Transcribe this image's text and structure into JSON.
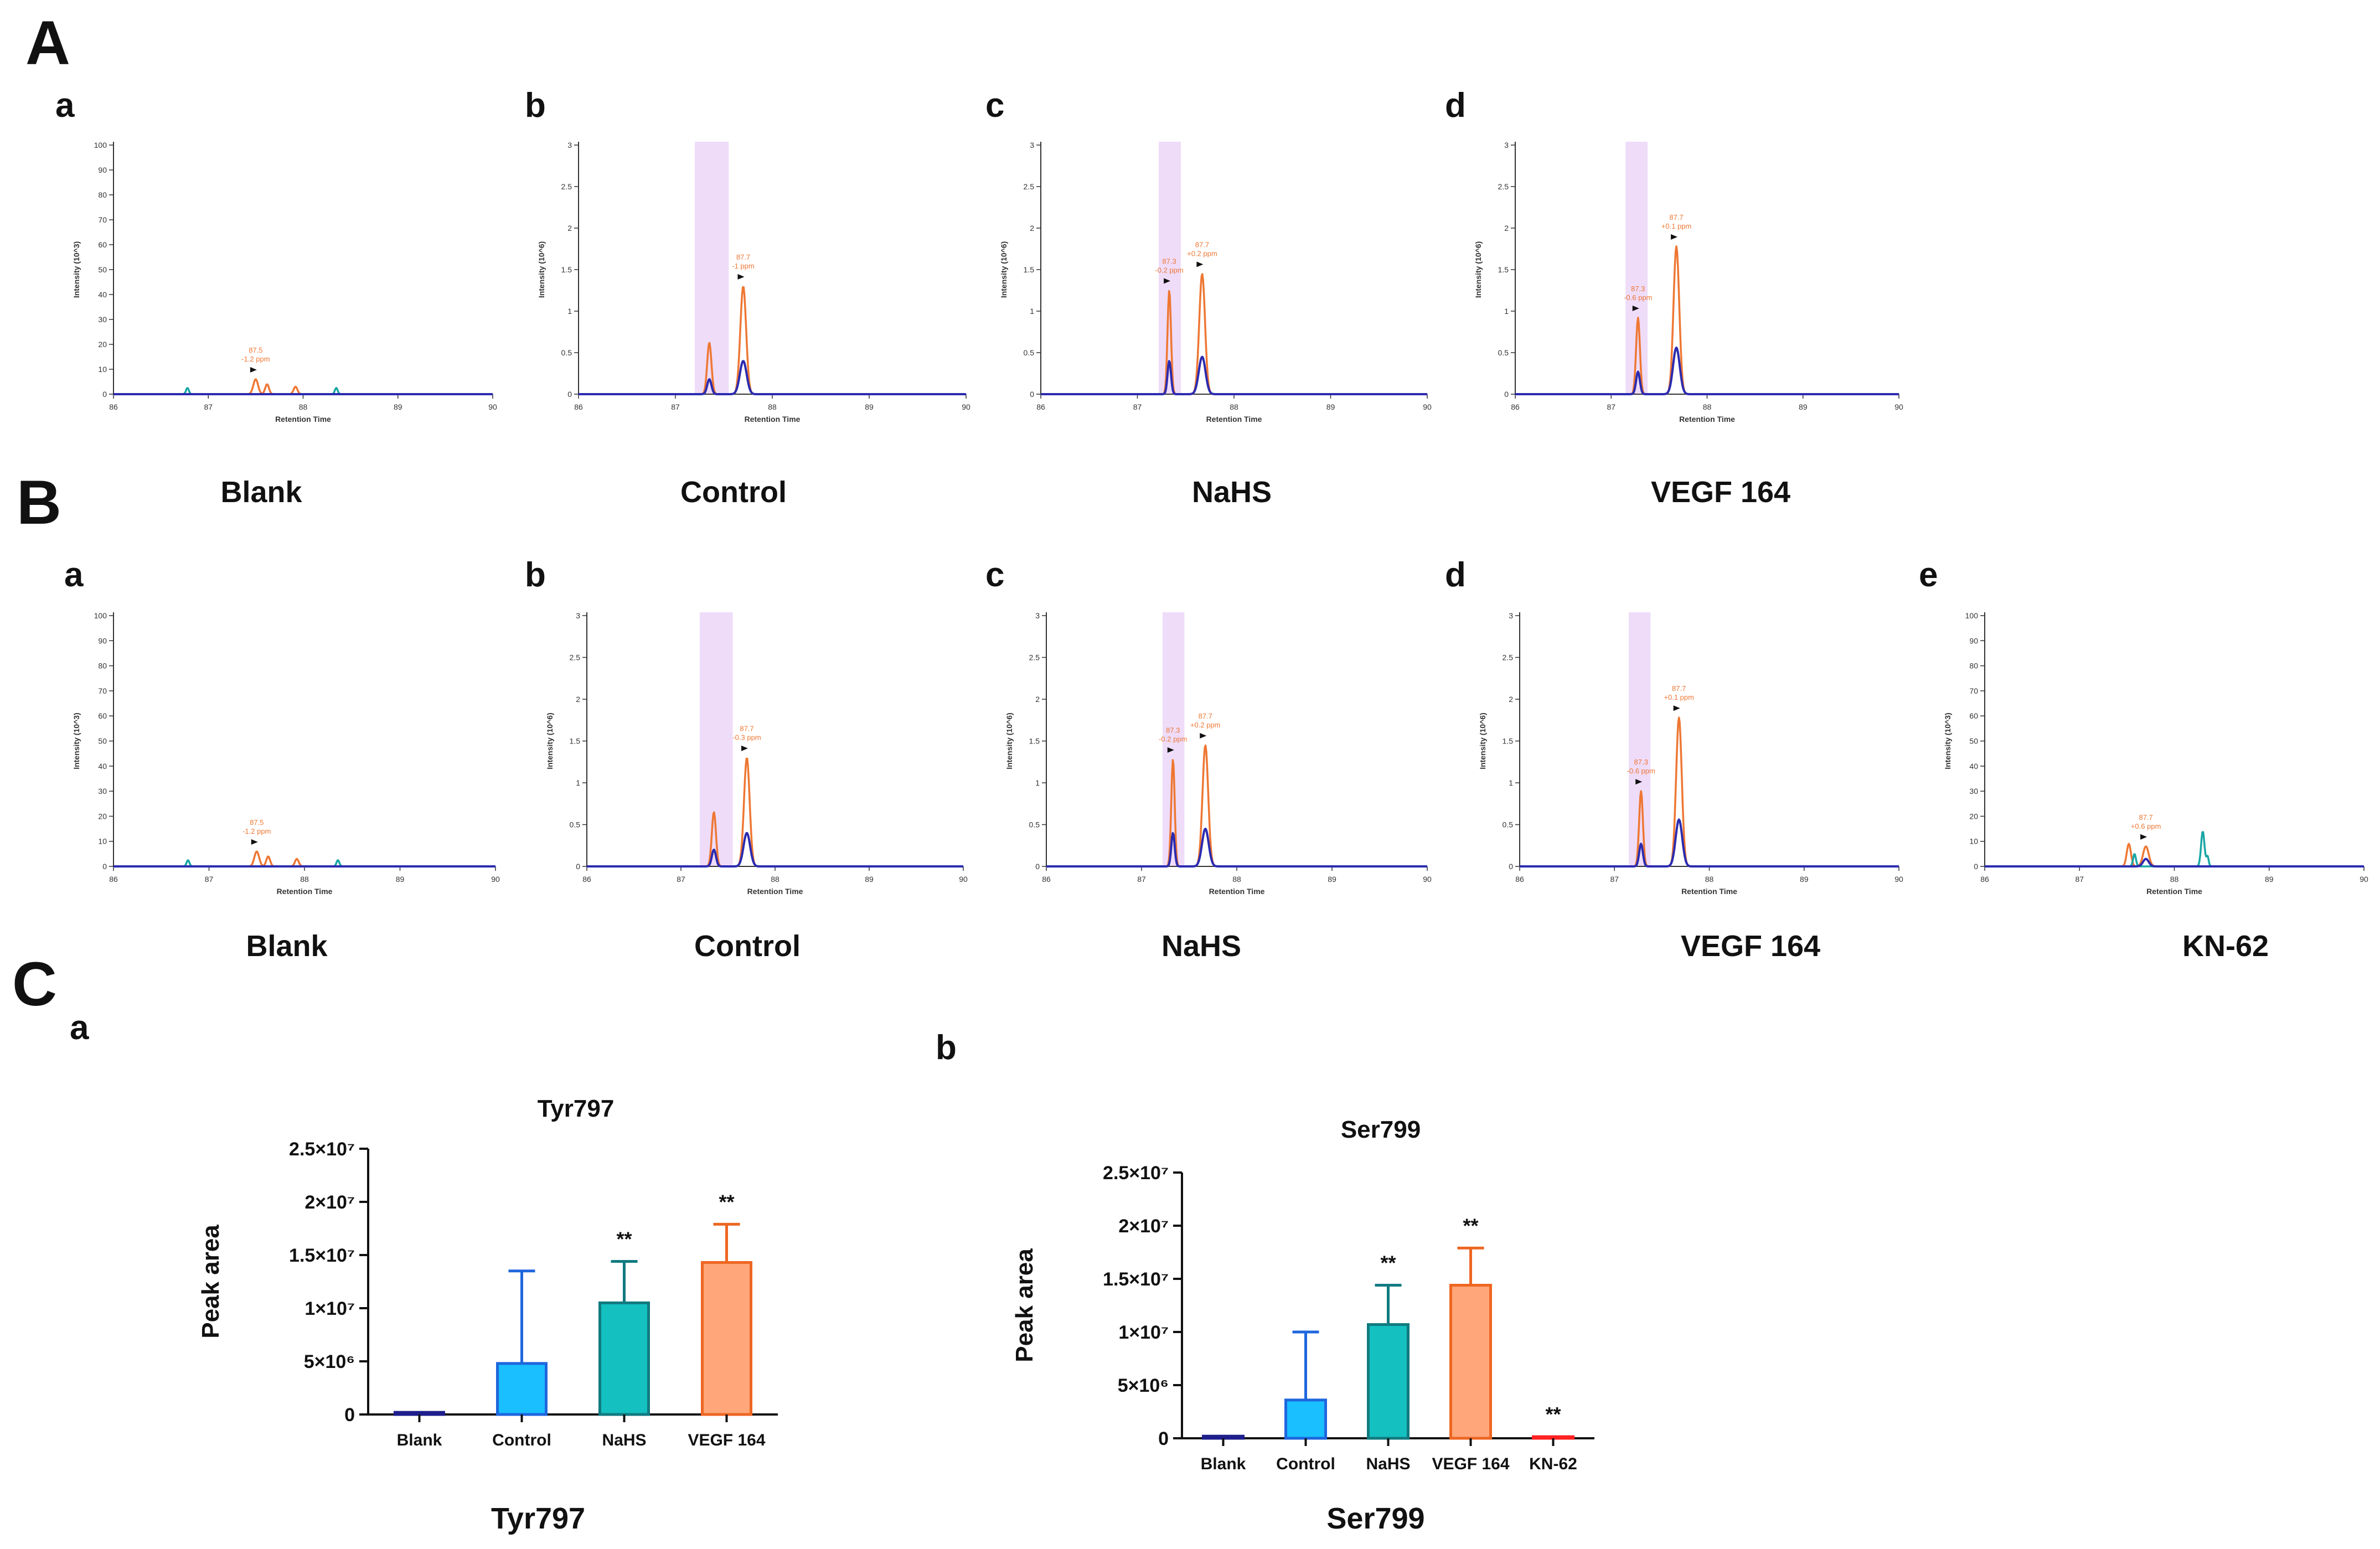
{
  "labels": {
    "A": "A",
    "B": "B",
    "C": "C",
    "A_sub": [
      "a",
      "b",
      "c",
      "d"
    ],
    "B_sub": [
      "a",
      "b",
      "c",
      "d",
      "e"
    ],
    "C_sub": [
      "a",
      "b"
    ],
    "A_conditions": [
      "Blank",
      "Control",
      "NaHS",
      "VEGF 164"
    ],
    "B_conditions": [
      "Blank",
      "Control",
      "NaHS",
      "VEGF 164",
      "KN-62"
    ]
  },
  "chrom_axes": {
    "x_ticks": [
      "86",
      "87",
      "88",
      "89",
      "90"
    ],
    "x_label": "Retention Time",
    "y_ticks_blank": [
      "0",
      "10",
      "20",
      "30",
      "40",
      "50",
      "60",
      "70",
      "80",
      "90",
      "100"
    ],
    "y_label_blank": "Intensity (10^3)",
    "y_ticks_sample": [
      "0",
      "0.5",
      "1",
      "1.5",
      "2",
      "2.5",
      "3"
    ],
    "y_label_sample": "Intensity (10^6)"
  },
  "chart_data": [
    {
      "id": "A-a",
      "type": "line",
      "title": "Blank",
      "xlim": [
        86,
        90
      ],
      "ylim": [
        0,
        100
      ],
      "xlabel": "Retention Time",
      "ylabel": "Intensity (10^3)",
      "highlight": null,
      "annotations": [
        {
          "rt": "87.5",
          "ppm": "-1.2 ppm"
        }
      ],
      "peaks": [
        {
          "color": "#ee7733",
          "peaks": [
            [
              87.5,
              6,
              0.025
            ],
            [
              87.62,
              4,
              0.02
            ],
            [
              87.92,
              3,
              0.02
            ]
          ]
        },
        {
          "color": "#19a6a6",
          "peaks": [
            [
              86.78,
              2.5,
              0.015
            ],
            [
              88.35,
              2.5,
              0.015
            ]
          ]
        },
        {
          "color": "#2b2bb0",
          "peaks": []
        }
      ]
    },
    {
      "id": "A-b",
      "type": "line",
      "title": "Control",
      "xlim": [
        86,
        90
      ],
      "ylim": [
        0,
        3
      ],
      "xlabel": "Retention Time",
      "ylabel": "Intensity (10^6)",
      "highlight": [
        87.2,
        87.55
      ],
      "annotations": [
        {
          "rt": "87.7",
          "ppm": "-1 ppm"
        }
      ],
      "peaks": [
        {
          "color": "#ee7733",
          "peaks": [
            [
              87.35,
              0.62,
              0.022
            ],
            [
              87.7,
              1.3,
              0.03
            ]
          ]
        },
        {
          "color": "#2b2bb0",
          "peaks": [
            [
              87.35,
              0.18,
              0.022
            ],
            [
              87.7,
              0.4,
              0.035
            ]
          ]
        }
      ]
    },
    {
      "id": "A-c",
      "type": "line",
      "title": "NaHS",
      "xlim": [
        86,
        90
      ],
      "ylim": [
        0,
        3
      ],
      "xlabel": "Retention Time",
      "ylabel": "Intensity (10^6)",
      "highlight": [
        87.22,
        87.45
      ],
      "annotations": [
        {
          "rt": "87.3",
          "ppm": "-0.2 ppm"
        },
        {
          "rt": "87.7",
          "ppm": "+0.2 ppm"
        }
      ],
      "peaks": [
        {
          "color": "#ee7733",
          "peaks": [
            [
              87.33,
              1.25,
              0.018
            ],
            [
              87.67,
              1.45,
              0.03
            ]
          ]
        },
        {
          "color": "#2b2bb0",
          "peaks": [
            [
              87.33,
              0.4,
              0.018
            ],
            [
              87.67,
              0.45,
              0.035
            ]
          ]
        }
      ]
    },
    {
      "id": "A-d",
      "type": "line",
      "title": "VEGF 164",
      "xlim": [
        86,
        90
      ],
      "ylim": [
        0,
        3
      ],
      "xlabel": "Retention Time",
      "ylabel": "Intensity (10^6)",
      "highlight": [
        87.15,
        87.38
      ],
      "annotations": [
        {
          "rt": "87.3",
          "ppm": "-0.6 ppm"
        },
        {
          "rt": "87.7",
          "ppm": "+0.1 ppm"
        }
      ],
      "peaks": [
        {
          "color": "#ee7733",
          "peaks": [
            [
              87.28,
              0.92,
              0.02
            ],
            [
              87.68,
              1.78,
              0.03
            ]
          ]
        },
        {
          "color": "#2b2bb0",
          "peaks": [
            [
              87.28,
              0.27,
              0.02
            ],
            [
              87.68,
              0.56,
              0.035
            ]
          ]
        }
      ]
    },
    {
      "id": "B-a",
      "type": "line",
      "title": "Blank",
      "xlim": [
        86,
        90
      ],
      "ylim": [
        0,
        100
      ],
      "xlabel": "Retention Time",
      "ylabel": "Intensity (10^3)",
      "highlight": null,
      "annotations": [
        {
          "rt": "87.5",
          "ppm": "-1.2 ppm"
        }
      ],
      "peaks": [
        {
          "color": "#ee7733",
          "peaks": [
            [
              87.5,
              6,
              0.025
            ],
            [
              87.62,
              4,
              0.02
            ],
            [
              87.92,
              3,
              0.02
            ]
          ]
        },
        {
          "color": "#19a6a6",
          "peaks": [
            [
              86.78,
              2.5,
              0.015
            ],
            [
              88.35,
              2.5,
              0.015
            ]
          ]
        },
        {
          "color": "#2b2bb0",
          "peaks": []
        }
      ]
    },
    {
      "id": "B-b",
      "type": "line",
      "title": "Control",
      "xlim": [
        86,
        90
      ],
      "ylim": [
        0,
        3
      ],
      "xlabel": "Retention Time",
      "ylabel": "Intensity (10^6)",
      "highlight": [
        87.2,
        87.55
      ],
      "annotations": [
        {
          "rt": "87.7",
          "ppm": "-0.3 ppm"
        }
      ],
      "peaks": [
        {
          "color": "#ee7733",
          "peaks": [
            [
              87.35,
              0.65,
              0.022
            ],
            [
              87.7,
              1.3,
              0.03
            ]
          ]
        },
        {
          "color": "#2b2bb0",
          "peaks": [
            [
              87.35,
              0.2,
              0.022
            ],
            [
              87.7,
              0.4,
              0.035
            ]
          ]
        }
      ]
    },
    {
      "id": "B-c",
      "type": "line",
      "title": "NaHS",
      "xlim": [
        86,
        90
      ],
      "ylim": [
        0,
        3
      ],
      "xlabel": "Retention Time",
      "ylabel": "Intensity (10^6)",
      "highlight": [
        87.22,
        87.45
      ],
      "annotations": [
        {
          "rt": "87.3",
          "ppm": "-0.2 ppm"
        },
        {
          "rt": "87.7",
          "ppm": "+0.2 ppm"
        }
      ],
      "peaks": [
        {
          "color": "#ee7733",
          "peaks": [
            [
              87.33,
              1.28,
              0.018
            ],
            [
              87.67,
              1.45,
              0.03
            ]
          ]
        },
        {
          "color": "#2b2bb0",
          "peaks": [
            [
              87.33,
              0.4,
              0.018
            ],
            [
              87.67,
              0.45,
              0.035
            ]
          ]
        }
      ]
    },
    {
      "id": "B-d",
      "type": "line",
      "title": "VEGF 164",
      "xlim": [
        86,
        90
      ],
      "ylim": [
        0,
        3
      ],
      "xlabel": "Retention Time",
      "ylabel": "Intensity (10^6)",
      "highlight": [
        87.15,
        87.38
      ],
      "annotations": [
        {
          "rt": "87.3",
          "ppm": "-0.6 ppm"
        },
        {
          "rt": "87.7",
          "ppm": "+0.1 ppm"
        }
      ],
      "peaks": [
        {
          "color": "#ee7733",
          "peaks": [
            [
              87.28,
              0.9,
              0.02
            ],
            [
              87.68,
              1.78,
              0.03
            ]
          ]
        },
        {
          "color": "#2b2bb0",
          "peaks": [
            [
              87.28,
              0.27,
              0.02
            ],
            [
              87.68,
              0.56,
              0.035
            ]
          ]
        }
      ]
    },
    {
      "id": "B-e",
      "type": "line",
      "title": "KN-62",
      "xlim": [
        86,
        90
      ],
      "ylim": [
        0,
        100
      ],
      "xlabel": "Retention Time",
      "ylabel": "Intensity (10^3)",
      "highlight": null,
      "annotations": [
        {
          "rt": "87.7",
          "ppm": "+0.6 ppm"
        }
      ],
      "peaks": [
        {
          "color": "#ee7733",
          "peaks": [
            [
              87.52,
              9,
              0.022
            ],
            [
              87.7,
              8,
              0.03
            ]
          ]
        },
        {
          "color": "#19a6a6",
          "peaks": [
            [
              87.58,
              5,
              0.015
            ],
            [
              88.3,
              14,
              0.018
            ],
            [
              88.35,
              4,
              0.012
            ]
          ]
        },
        {
          "color": "#2b2bb0",
          "peaks": [
            [
              87.7,
              3,
              0.03
            ]
          ]
        }
      ]
    },
    {
      "id": "C-a",
      "type": "bar",
      "title": "Tyr797",
      "bottom_label": "Tyr797",
      "ylabel": "Peak area",
      "ylim": [
        0,
        25000000
      ],
      "y_ticks": [
        {
          "v": 0,
          "label": "0"
        },
        {
          "v": 5000000,
          "label": "5×10⁶"
        },
        {
          "v": 10000000,
          "label": "1×10⁷"
        },
        {
          "v": 15000000,
          "label": "1.5×10⁷"
        },
        {
          "v": 20000000,
          "label": "2×10⁷"
        },
        {
          "v": 25000000,
          "label": "2.5×10⁷"
        }
      ],
      "categories": [
        "Blank",
        "Control",
        "NaHS",
        "VEGF 164"
      ],
      "values": [
        200000,
        4800000,
        10500000,
        14300000
      ],
      "errors": [
        0,
        8700000,
        3900000,
        3600000
      ],
      "significance": [
        "",
        "",
        "**",
        "**"
      ],
      "fills": [
        "#1e1e8c",
        "#19bfff",
        "#14c0c0",
        "#ffa77a"
      ],
      "edges": [
        "#1e1e8c",
        "#1e66dd",
        "#117a80",
        "#ee6622"
      ]
    },
    {
      "id": "C-b",
      "type": "bar",
      "title": "Ser799",
      "bottom_label": "Ser799",
      "ylabel": "Peak area",
      "ylim": [
        0,
        25000000
      ],
      "y_ticks": [
        {
          "v": 0,
          "label": "0"
        },
        {
          "v": 5000000,
          "label": "5×10⁶"
        },
        {
          "v": 10000000,
          "label": "1×10⁷"
        },
        {
          "v": 15000000,
          "label": "1.5×10⁷"
        },
        {
          "v": 20000000,
          "label": "2×10⁷"
        },
        {
          "v": 25000000,
          "label": "2.5×10⁷"
        }
      ],
      "categories": [
        "Blank",
        "Control",
        "NaHS",
        "VEGF 164",
        "KN-62"
      ],
      "values": [
        200000,
        3600000,
        10700000,
        14400000,
        150000
      ],
      "errors": [
        0,
        6400000,
        3700000,
        3500000,
        0
      ],
      "significance": [
        "",
        "",
        "**",
        "**",
        "**"
      ],
      "fills": [
        "#1e1e8c",
        "#19bfff",
        "#14c0c0",
        "#ffa77a",
        "#ff2222"
      ],
      "edges": [
        "#1e1e8c",
        "#1e66dd",
        "#117a80",
        "#ee6622",
        "#ff2222"
      ]
    }
  ]
}
